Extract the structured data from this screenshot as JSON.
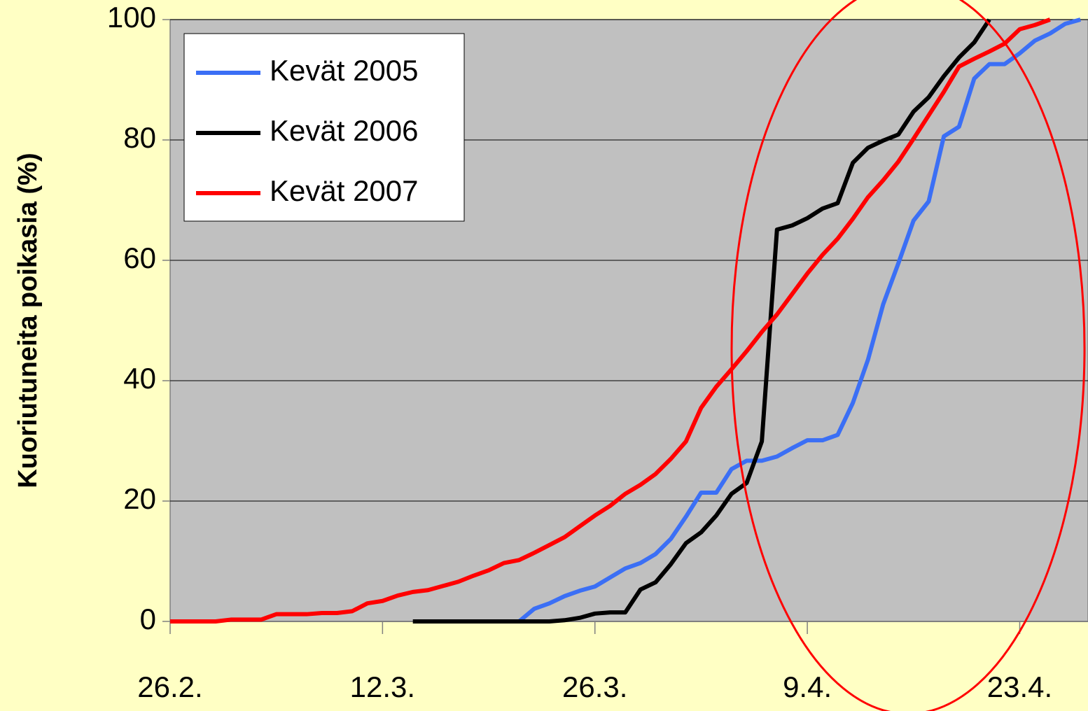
{
  "chart_data": {
    "type": "line",
    "ylabel": "Kuoriutuneita poikasia (%)",
    "xlim": [
      0,
      60.5
    ],
    "xticks": [
      {
        "value": 0,
        "label": "26.2."
      },
      {
        "value": 14,
        "label": "12.3."
      },
      {
        "value": 28,
        "label": "26.3."
      },
      {
        "value": 42,
        "label": "9.4."
      },
      {
        "value": 56,
        "label": "23.4."
      }
    ],
    "ylim": [
      0,
      100
    ],
    "yticks": [
      0,
      20,
      40,
      60,
      80,
      100
    ],
    "grid": true,
    "legend": "upper left",
    "series": [
      {
        "name": "Kevät 2005",
        "color": "#3b6ff5",
        "x": [
          23,
          24,
          25,
          26,
          27,
          28,
          29,
          30,
          31,
          32,
          33,
          34,
          35,
          36,
          37,
          38,
          39,
          40,
          41,
          42,
          43,
          44,
          45,
          46,
          47,
          48,
          49,
          50,
          51,
          52,
          53,
          54,
          55,
          56,
          57,
          58,
          59,
          60
        ],
        "values": [
          0,
          2.1,
          3,
          4.2,
          5.1,
          5.8,
          7.3,
          8.8,
          9.7,
          11.2,
          13.7,
          17.4,
          21.4,
          21.4,
          25.3,
          26.7,
          26.7,
          27.4,
          28.8,
          30.1,
          30.1,
          31,
          36.3,
          43.5,
          52.7,
          59.5,
          66.6,
          69.8,
          80.6,
          82.2,
          90.2,
          92.6,
          92.6,
          94.4,
          96.5,
          97.7,
          99.3,
          100
        ]
      },
      {
        "name": "Kevät 2006",
        "color": "#000000",
        "x": [
          16,
          17,
          18,
          19,
          20,
          21,
          22,
          23,
          24,
          25,
          26,
          27,
          28,
          29,
          30,
          31,
          32,
          33,
          34,
          35,
          36,
          37,
          38,
          39,
          40,
          41,
          42,
          43,
          44,
          45,
          46,
          47,
          48,
          49,
          50,
          51,
          52,
          53,
          54
        ],
        "values": [
          0,
          0,
          0,
          0,
          0,
          0,
          0,
          0,
          0,
          0,
          0.2,
          0.6,
          1.3,
          1.5,
          1.5,
          5.3,
          6.5,
          9.5,
          13,
          14.8,
          17.6,
          21.2,
          23,
          29.9,
          65.1,
          65.8,
          67,
          68.6,
          69.5,
          76.2,
          78.7,
          79.9,
          80.9,
          84.7,
          87.1,
          90.6,
          93.7,
          96.2,
          100
        ]
      },
      {
        "name": "Kevät 2007",
        "color": "#ff0000",
        "x": [
          0,
          1,
          2,
          3,
          4,
          5,
          6,
          7,
          8,
          9,
          10,
          11,
          12,
          13,
          14,
          15,
          16,
          17,
          18,
          19,
          20,
          21,
          22,
          23,
          24,
          25,
          26,
          27,
          28,
          29,
          30,
          31,
          32,
          33,
          34,
          35,
          36,
          37,
          38,
          39,
          40,
          41,
          42,
          43,
          44,
          45,
          46,
          47,
          48,
          49,
          50,
          51,
          52,
          53,
          54,
          55,
          56,
          57,
          58
        ],
        "values": [
          0,
          0,
          0,
          0,
          0.3,
          0.3,
          0.3,
          1.2,
          1.2,
          1.2,
          1.4,
          1.4,
          1.7,
          3,
          3.4,
          4.3,
          4.9,
          5.2,
          5.9,
          6.6,
          7.6,
          8.5,
          9.7,
          10.2,
          11.4,
          12.7,
          14,
          15.8,
          17.6,
          19.2,
          21.2,
          22.7,
          24.5,
          27,
          29.9,
          35.5,
          39,
          41.9,
          44.9,
          48.1,
          51,
          54.4,
          57.8,
          60.9,
          63.6,
          66.9,
          70.5,
          73.3,
          76.4,
          80.2,
          84.1,
          88,
          92.2,
          93.5,
          94.7,
          96,
          98.4,
          99.1,
          100
        ]
      }
    ]
  }
}
